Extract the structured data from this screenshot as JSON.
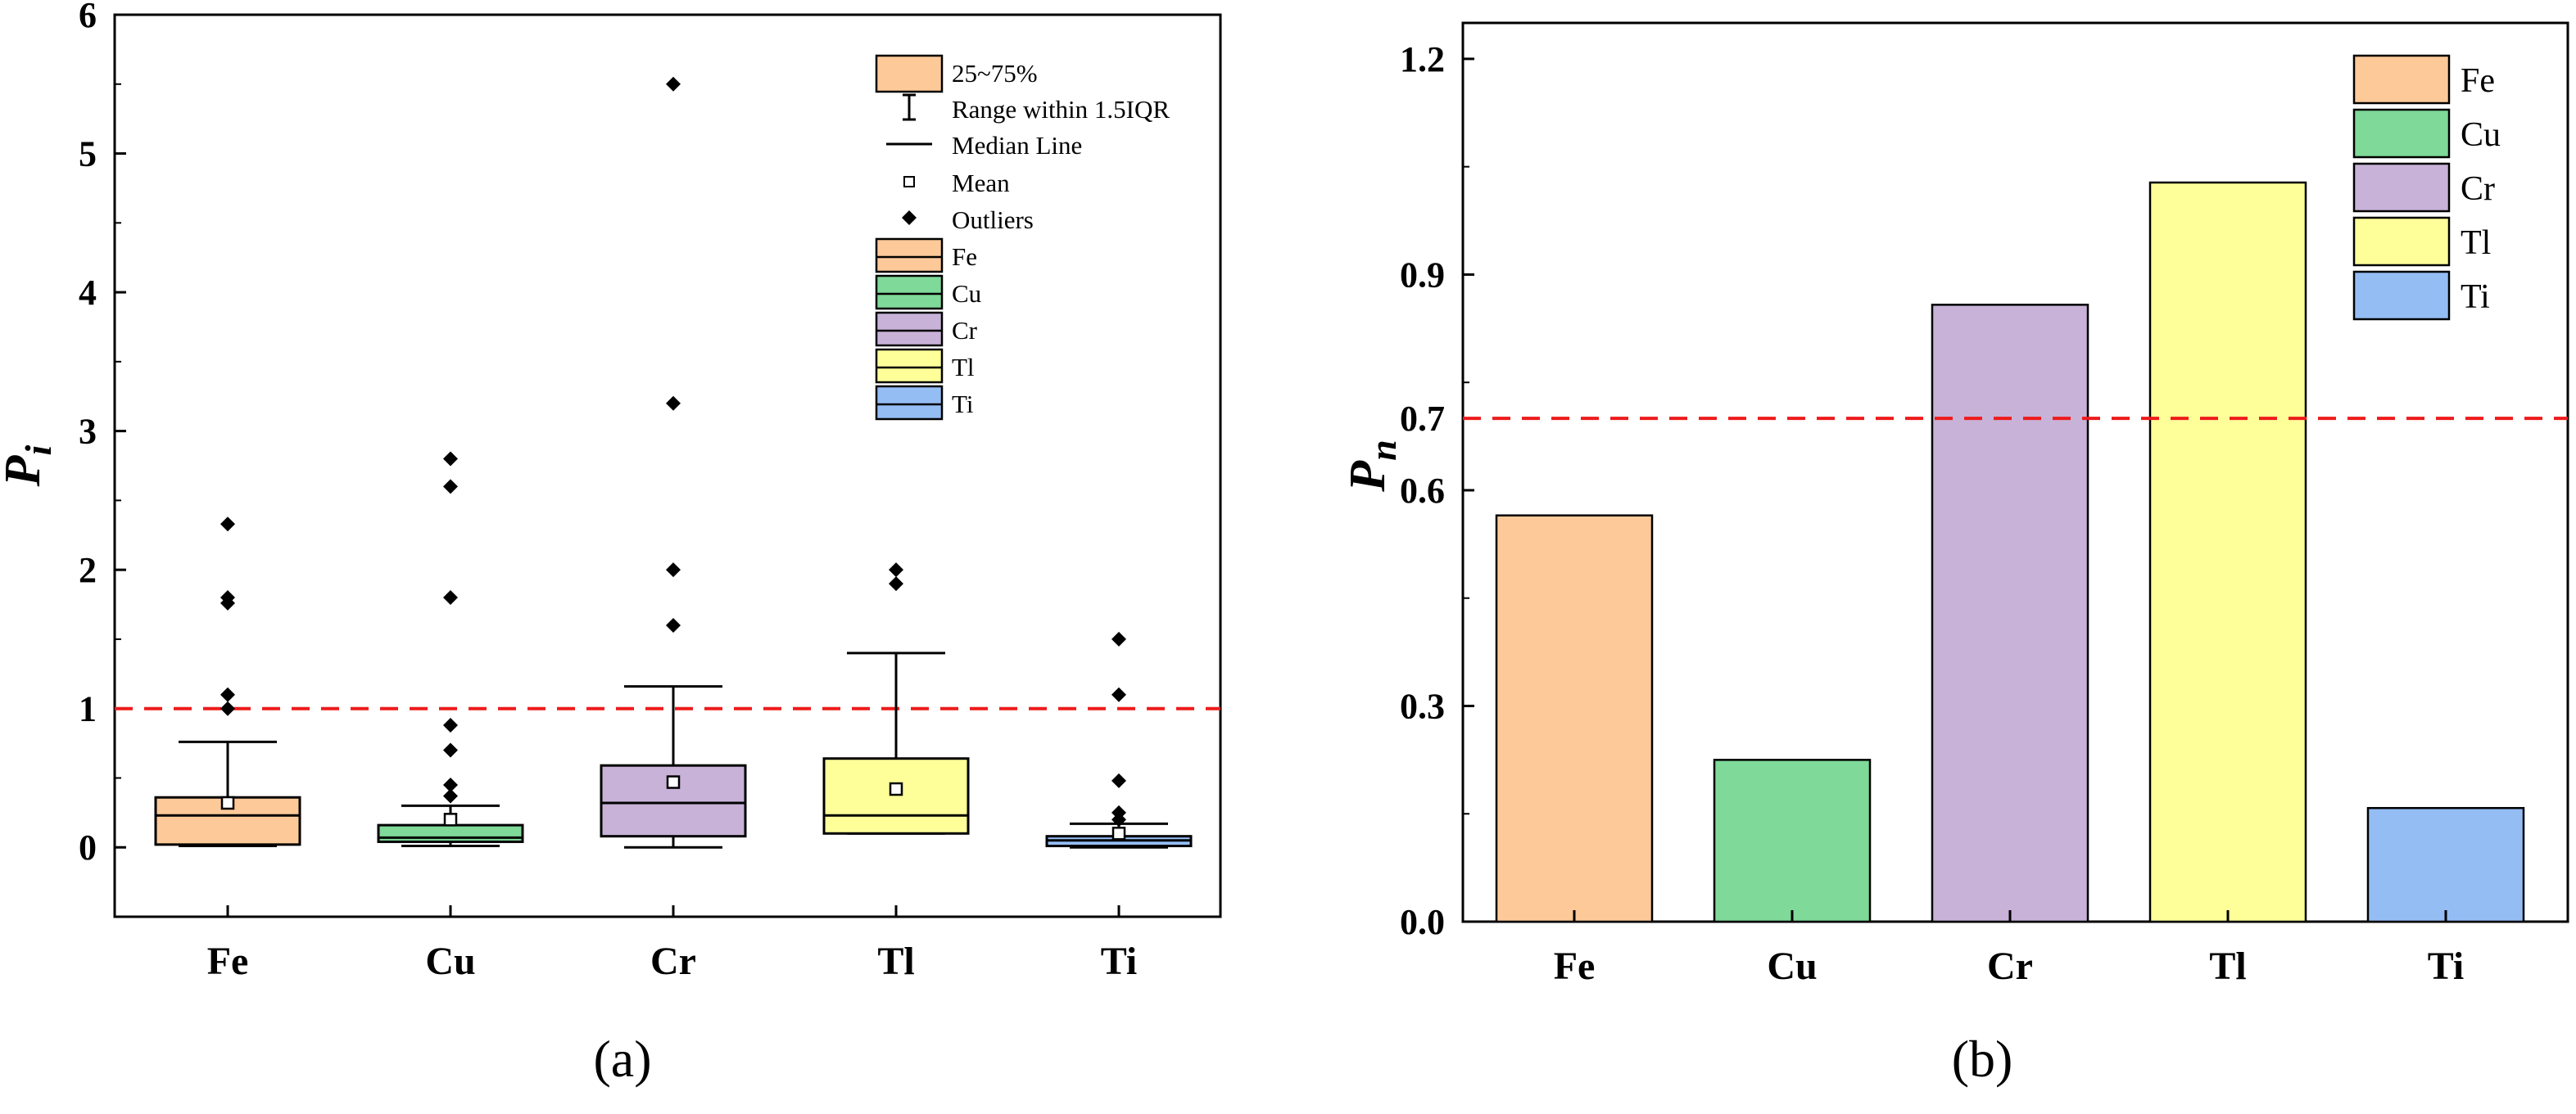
{
  "colors": {
    "Fe": "#FDC999",
    "Cu": "#7FD998",
    "Cr": "#C8B2D8",
    "Tl": "#FFFF9A",
    "Ti": "#94BDF4",
    "threshold_line": "#EE1B1B"
  },
  "chart_data": [
    {
      "panel": "(a)",
      "type": "box",
      "ylabel": "P",
      "ylabel_sub": "i",
      "categories": [
        "Fe",
        "Cu",
        "Cr",
        "Tl",
        "Ti"
      ],
      "ylim": [
        -0.5,
        6
      ],
      "yticks": [
        0,
        1,
        2,
        3,
        4,
        5,
        6
      ],
      "threshold": 1,
      "boxes": [
        {
          "name": "Fe",
          "whisker_low": 0.01,
          "q1": 0.02,
          "median": 0.23,
          "q3": 0.36,
          "whisker_high": 0.76,
          "mean": 0.32,
          "outliers": [
            1.0,
            1.1,
            1.76,
            1.8,
            2.33
          ]
        },
        {
          "name": "Cu",
          "whisker_low": 0.01,
          "q1": 0.04,
          "median": 0.07,
          "q3": 0.16,
          "whisker_high": 0.3,
          "mean": 0.2,
          "outliers": [
            0.37,
            0.45,
            0.7,
            0.88,
            1.8,
            2.6,
            2.8
          ]
        },
        {
          "name": "Cr",
          "whisker_low": 0.0,
          "q1": 0.08,
          "median": 0.32,
          "q3": 0.59,
          "whisker_high": 1.16,
          "mean": 0.47,
          "outliers": [
            1.6,
            2.0,
            3.2,
            5.5
          ]
        },
        {
          "name": "Tl",
          "whisker_low": 0.1,
          "q1": 0.1,
          "median": 0.23,
          "q3": 0.64,
          "whisker_high": 1.4,
          "mean": 0.42,
          "outliers": [
            1.9,
            2.0
          ]
        },
        {
          "name": "Ti",
          "whisker_low": 0.0,
          "q1": 0.01,
          "median": 0.05,
          "q3": 0.08,
          "whisker_high": 0.17,
          "mean": 0.1,
          "outliers": [
            0.2,
            0.25,
            0.48,
            1.1,
            1.5
          ]
        }
      ],
      "legend": {
        "iqr": "25~75%",
        "range": "Range within 1.5IQR",
        "median": "Median Line",
        "mean": "Mean",
        "outliers": "Outliers",
        "series": [
          "Fe",
          "Cu",
          "Cr",
          "Tl",
          "Ti"
        ],
        "placement": "top-right"
      }
    },
    {
      "panel": "(b)",
      "type": "bar",
      "ylabel": "P",
      "ylabel_sub": "n",
      "categories": [
        "Fe",
        "Cu",
        "Cr",
        "Tl",
        "Ti"
      ],
      "values": [
        0.565,
        0.225,
        0.858,
        1.028,
        0.158
      ],
      "ylim": [
        0,
        1.25
      ],
      "yticks": [
        "0.0",
        "0.3",
        "0.6",
        "0.7",
        "0.9",
        "1.2"
      ],
      "threshold": 0.7,
      "legend": {
        "series": [
          "Fe",
          "Cu",
          "Cr",
          "Tl",
          "Ti"
        ],
        "placement": "top-right"
      }
    }
  ]
}
